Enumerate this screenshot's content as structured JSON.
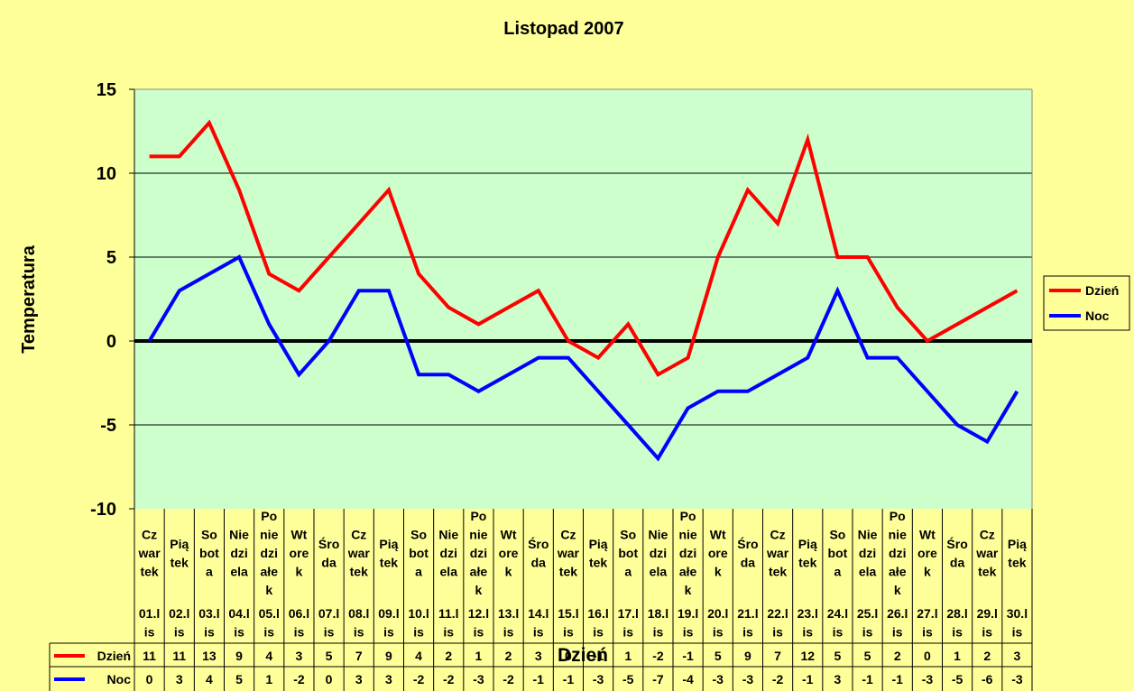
{
  "chart_data": {
    "type": "line",
    "title": "Listopad 2007",
    "xlabel": "Dzień",
    "ylabel": "Temperatura",
    "ylim": [
      -10,
      15
    ],
    "yticks": [
      15,
      10,
      5,
      0,
      -5,
      -10
    ],
    "grid": true,
    "legend_position": "right",
    "categories": [
      {
        "day": [
          "Cz",
          "war",
          "tek"
        ],
        "date": [
          "01.l",
          "is"
        ]
      },
      {
        "day": [
          "Pią",
          "tek"
        ],
        "date": [
          "02.l",
          "is"
        ]
      },
      {
        "day": [
          "So",
          "bot",
          "a"
        ],
        "date": [
          "03.l",
          "is"
        ]
      },
      {
        "day": [
          "Nie",
          "dzi",
          "ela"
        ],
        "date": [
          "04.l",
          "is"
        ]
      },
      {
        "day": [
          "Po",
          "nie",
          "dzi",
          "ałe",
          "k"
        ],
        "date": [
          "05.l",
          "is"
        ]
      },
      {
        "day": [
          "Wt",
          "ore",
          "k"
        ],
        "date": [
          "06.l",
          "is"
        ]
      },
      {
        "day": [
          "Śro",
          "da"
        ],
        "date": [
          "07.l",
          "is"
        ]
      },
      {
        "day": [
          "Cz",
          "war",
          "tek"
        ],
        "date": [
          "08.l",
          "is"
        ]
      },
      {
        "day": [
          "Pią",
          "tek"
        ],
        "date": [
          "09.l",
          "is"
        ]
      },
      {
        "day": [
          "So",
          "bot",
          "a"
        ],
        "date": [
          "10.l",
          "is"
        ]
      },
      {
        "day": [
          "Nie",
          "dzi",
          "ela"
        ],
        "date": [
          "11.l",
          "is"
        ]
      },
      {
        "day": [
          "Po",
          "nie",
          "dzi",
          "ałe",
          "k"
        ],
        "date": [
          "12.l",
          "is"
        ]
      },
      {
        "day": [
          "Wt",
          "ore",
          "k"
        ],
        "date": [
          "13.l",
          "is"
        ]
      },
      {
        "day": [
          "Śro",
          "da"
        ],
        "date": [
          "14.l",
          "is"
        ]
      },
      {
        "day": [
          "Cz",
          "war",
          "tek"
        ],
        "date": [
          "15.l",
          "is"
        ]
      },
      {
        "day": [
          "Pią",
          "tek"
        ],
        "date": [
          "16.l",
          "is"
        ]
      },
      {
        "day": [
          "So",
          "bot",
          "a"
        ],
        "date": [
          "17.l",
          "is"
        ]
      },
      {
        "day": [
          "Nie",
          "dzi",
          "ela"
        ],
        "date": [
          "18.l",
          "is"
        ]
      },
      {
        "day": [
          "Po",
          "nie",
          "dzi",
          "ałe",
          "k"
        ],
        "date": [
          "19.l",
          "is"
        ]
      },
      {
        "day": [
          "Wt",
          "ore",
          "k"
        ],
        "date": [
          "20.l",
          "is"
        ]
      },
      {
        "day": [
          "Śro",
          "da"
        ],
        "date": [
          "21.l",
          "is"
        ]
      },
      {
        "day": [
          "Cz",
          "war",
          "tek"
        ],
        "date": [
          "22.l",
          "is"
        ]
      },
      {
        "day": [
          "Pią",
          "tek"
        ],
        "date": [
          "23.l",
          "is"
        ]
      },
      {
        "day": [
          "So",
          "bot",
          "a"
        ],
        "date": [
          "24.l",
          "is"
        ]
      },
      {
        "day": [
          "Nie",
          "dzi",
          "ela"
        ],
        "date": [
          "25.l",
          "is"
        ]
      },
      {
        "day": [
          "Po",
          "nie",
          "dzi",
          "ałe",
          "k"
        ],
        "date": [
          "26.l",
          "is"
        ]
      },
      {
        "day": [
          "Wt",
          "ore",
          "k"
        ],
        "date": [
          "27.l",
          "is"
        ]
      },
      {
        "day": [
          "Śro",
          "da"
        ],
        "date": [
          "28.l",
          "is"
        ]
      },
      {
        "day": [
          "Cz",
          "war",
          "tek"
        ],
        "date": [
          "29.l",
          "is"
        ]
      },
      {
        "day": [
          "Pią",
          "tek"
        ],
        "date": [
          "30.l",
          "is"
        ]
      }
    ],
    "series": [
      {
        "name": "Dzień",
        "color": "#ff0000",
        "values": [
          11,
          11,
          13,
          9,
          4,
          3,
          5,
          7,
          9,
          4,
          2,
          1,
          2,
          3,
          0,
          -1,
          1,
          -2,
          -1,
          5,
          9,
          7,
          12,
          5,
          5,
          2,
          0,
          1,
          2,
          3
        ]
      },
      {
        "name": "Noc",
        "color": "#0000ff",
        "values": [
          0,
          3,
          4,
          5,
          1,
          -2,
          0,
          3,
          3,
          -2,
          -2,
          -3,
          -2,
          -1,
          -1,
          -3,
          -5,
          -7,
          -4,
          -3,
          -3,
          -2,
          -1,
          3,
          -1,
          -1,
          -3,
          -5,
          -6,
          -3
        ]
      }
    ]
  },
  "colors": {
    "background": "#ffff99",
    "plot_area": "#ccffcc",
    "zero_line": "#000000"
  }
}
